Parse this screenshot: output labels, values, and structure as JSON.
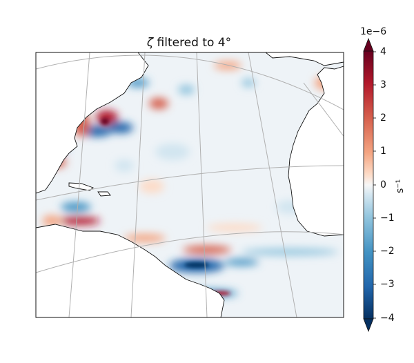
{
  "title": {
    "symbol": "ζ",
    "text": "filtered to 4°"
  },
  "colorbar": {
    "exponent": "1e−6",
    "ticks": [
      "4",
      "3",
      "2",
      "1",
      "0",
      "−1",
      "−2",
      "−3",
      "−4"
    ],
    "unit": "s⁻¹",
    "colors": {
      "max": "#67001f",
      "pos": "#d6604d",
      "zero": "#f7f7f7",
      "neg": "#4393c3",
      "min": "#053061"
    }
  },
  "map": {
    "region": "North Atlantic",
    "projection": "conic",
    "gridlines": "on"
  }
}
